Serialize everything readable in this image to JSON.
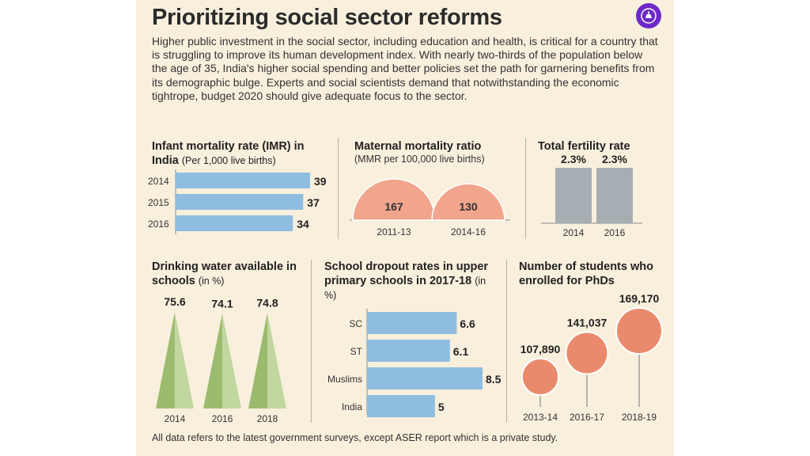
{
  "title": "Prioritizing social sector reforms",
  "intro": "Higher public investment in the social sector, including education and health, is critical for a country that is struggling to improve its human development index. With nearly two-thirds of the population below the age of 35, India's higher social spending and better policies set the path for garnering benefits from its demographic bulge. Experts and social scientists demand that notwithstanding the economic tightrope, budget 2020 should give adequate focus to the sector.",
  "footer": "All data refers to the latest government surveys, except ASER report which is a private study.",
  "colors": {
    "bar_blue": "#8fbde0",
    "bar_gray": "#a6aeb4",
    "salmon": "#f0a58c",
    "circle": "#ea8a6c",
    "green_dark": "#9bbb6e",
    "green_light": "#c2d7a0",
    "background": "#f8efdd",
    "logo": "#6d28c9"
  },
  "chart_data": [
    {
      "id": "imr",
      "type": "bar",
      "orientation": "horizontal",
      "title": "Infant mortality rate (IMR) in India",
      "unit": "(Per 1,000 live births)",
      "categories": [
        "2014",
        "2015",
        "2016"
      ],
      "values": [
        39,
        37,
        34
      ]
    },
    {
      "id": "mmr",
      "type": "area",
      "shape": "semicircle",
      "title": "Maternal mortality ratio",
      "unit": "(MMR per 100,000 live births)",
      "categories": [
        "2011-13",
        "2014-16"
      ],
      "values": [
        167,
        130
      ]
    },
    {
      "id": "tfr",
      "type": "bar",
      "title": "Total fertility rate",
      "categories": [
        "2014",
        "2016"
      ],
      "values": [
        2.3,
        2.3
      ],
      "labels": [
        "2.3%",
        "2.3%"
      ]
    },
    {
      "id": "water",
      "type": "bar",
      "shape": "triangle",
      "title": "Drinking water available in schools",
      "unit": "(in %)",
      "categories": [
        "2014",
        "2016",
        "2018"
      ],
      "values": [
        75.6,
        74.1,
        74.8
      ]
    },
    {
      "id": "dropout",
      "type": "bar",
      "orientation": "horizontal",
      "title": "School dropout rates in upper primary schools in 2017-18",
      "unit": "(in %)",
      "categories": [
        "SC",
        "ST",
        "Muslims",
        "India"
      ],
      "values": [
        6.6,
        6.1,
        8.5,
        5
      ]
    },
    {
      "id": "phd",
      "type": "scatter",
      "shape": "bubble",
      "title": "Number of students who enrolled for PhDs",
      "categories": [
        "2013-14",
        "2016-17",
        "2018-19"
      ],
      "values": [
        107890,
        141037,
        169170
      ],
      "labels": [
        "107,890",
        "141,037",
        "169,170"
      ]
    }
  ]
}
